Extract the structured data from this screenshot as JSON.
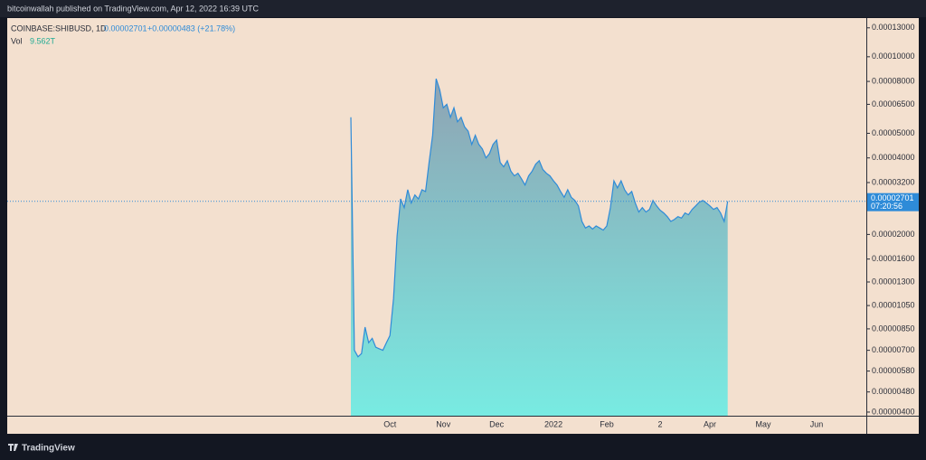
{
  "header": "bitcoinwallah published on TradingView.com, Apr 12, 2022 16:39 UTC",
  "footer": "TradingView",
  "chart_data": {
    "type": "area",
    "log_scale": true,
    "background": "#f3e0cf",
    "categories": [
      null,
      null,
      null,
      null,
      null,
      null,
      null,
      null,
      null,
      null,
      null,
      "Oct",
      null,
      null,
      null,
      null,
      null,
      null,
      null,
      null,
      null,
      null,
      null,
      null,
      null,
      null,
      "Nov",
      null,
      null,
      null,
      null,
      null,
      null,
      null,
      null,
      null,
      null,
      null,
      null,
      null,
      null,
      "Dec",
      null,
      null,
      null,
      null,
      null,
      null,
      null,
      null,
      null,
      null,
      null,
      null,
      null,
      null,
      null,
      "2022",
      null,
      null,
      null,
      null,
      null,
      null,
      null,
      null,
      null,
      null,
      null,
      null,
      null,
      null,
      "Feb",
      null,
      null,
      null,
      null,
      null,
      null,
      null,
      null,
      null,
      null,
      null,
      null,
      null,
      null,
      "2",
      null,
      null,
      null,
      null,
      null,
      null,
      null,
      null,
      null,
      null,
      null,
      null,
      null,
      "Apr",
      null,
      null,
      null,
      null,
      null,
      null,
      null,
      null,
      null,
      null,
      null,
      null,
      null,
      null,
      "May",
      null,
      null,
      null,
      null,
      null,
      null,
      null,
      null,
      null,
      null,
      null,
      null,
      null,
      null,
      "Jun",
      null,
      null,
      null,
      null,
      null,
      null,
      null,
      null,
      null,
      null,
      null,
      null,
      null
    ],
    "series": [
      {
        "name": "COINBASE:SHIBUSD, 1D",
        "color": "#2e8bd8",
        "values": [
          5.78e-05,
          7e-06,
          6.6e-06,
          6.8e-06,
          8.63e-06,
          7.5e-06,
          7.8e-06,
          7.2e-06,
          7.1e-06,
          7e-06,
          7.5e-06,
          8e-06,
          1.12e-05,
          1.97e-05,
          2.76e-05,
          2.55e-05,
          3e-05,
          2.66e-05,
          2.86e-05,
          2.76e-05,
          3e-05,
          2.95e-05,
          3.84e-05,
          4.91e-05,
          8.2e-05,
          7.4e-05,
          6.3e-05,
          6.5e-05,
          5.78e-05,
          6.3e-05,
          5.55e-05,
          5.78e-05,
          5.3e-05,
          5.1e-05,
          4.52e-05,
          4.91e-05,
          4.52e-05,
          4.34e-05,
          4e-05,
          4.16e-05,
          4.52e-05,
          4.7e-05,
          3.84e-05,
          3.69e-05,
          3.9e-05,
          3.55e-05,
          3.4e-05,
          3.48e-05,
          3.31e-05,
          3.13e-05,
          3.4e-05,
          3.55e-05,
          3.78e-05,
          3.9e-05,
          3.6e-05,
          3.48e-05,
          3.4e-05,
          3.25e-05,
          3.13e-05,
          2.95e-05,
          2.8e-05,
          3e-05,
          2.8e-05,
          2.72e-05,
          2.59e-05,
          2.25e-05,
          2.12e-05,
          2.16e-05,
          2.1e-05,
          2.16e-05,
          2.12e-05,
          2.08e-05,
          2.16e-05,
          2.55e-05,
          3.25e-05,
          3.05e-05,
          3.25e-05,
          3e-05,
          2.86e-05,
          2.95e-05,
          2.66e-05,
          2.45e-05,
          2.55e-05,
          2.45e-05,
          2.51e-05,
          2.72e-05,
          2.59e-05,
          2.49e-05,
          2.43e-05,
          2.35e-05,
          2.25e-05,
          2.29e-05,
          2.35e-05,
          2.32e-05,
          2.43e-05,
          2.39e-05,
          2.51e-05,
          2.59e-05,
          2.68e-05,
          2.72e-05,
          2.66e-05,
          2.59e-05,
          2.51e-05,
          2.55e-05,
          2.43e-05,
          2.25e-05,
          2.701e-05,
          null,
          null,
          null,
          null,
          null,
          null,
          null,
          null,
          null,
          null,
          null,
          null,
          null,
          null,
          null,
          null,
          null,
          null,
          null,
          null,
          null,
          null,
          null,
          null,
          null,
          null,
          null,
          null,
          null,
          null,
          null,
          null,
          null,
          null,
          null,
          null,
          null,
          null
        ]
      }
    ],
    "change": "+0.00000483 (+21.78%)",
    "volume_label": "Vol",
    "volume": "9.562T",
    "countdown": "07:20:56",
    "ylim": [
      3.87e-06,
      0.000142
    ],
    "yticks": [
      {
        "value": 0.00013,
        "label": "0.00013000"
      },
      {
        "value": 0.0001,
        "label": "0.00010000"
      },
      {
        "value": 8e-05,
        "label": "0.00008000"
      },
      {
        "value": 6.5e-05,
        "label": "0.00006500"
      },
      {
        "value": 5e-05,
        "label": "0.00005000"
      },
      {
        "value": 4e-05,
        "label": "0.00004000"
      },
      {
        "value": 3.2e-05,
        "label": "0.00003200"
      },
      {
        "value": 2e-05,
        "label": "0.00002000"
      },
      {
        "value": 1.6e-05,
        "label": "0.00001600"
      },
      {
        "value": 1.3e-05,
        "label": "0.00001300"
      },
      {
        "value": 1.05e-05,
        "label": "0.00001050"
      },
      {
        "value": 8.5e-06,
        "label": "0.00000850"
      },
      {
        "value": 7e-06,
        "label": "0.00000700"
      },
      {
        "value": 5.8e-06,
        "label": "0.00000580"
      },
      {
        "value": 4.8e-06,
        "label": "0.00000480"
      },
      {
        "value": 4e-06,
        "label": "0.00000400"
      }
    ]
  }
}
